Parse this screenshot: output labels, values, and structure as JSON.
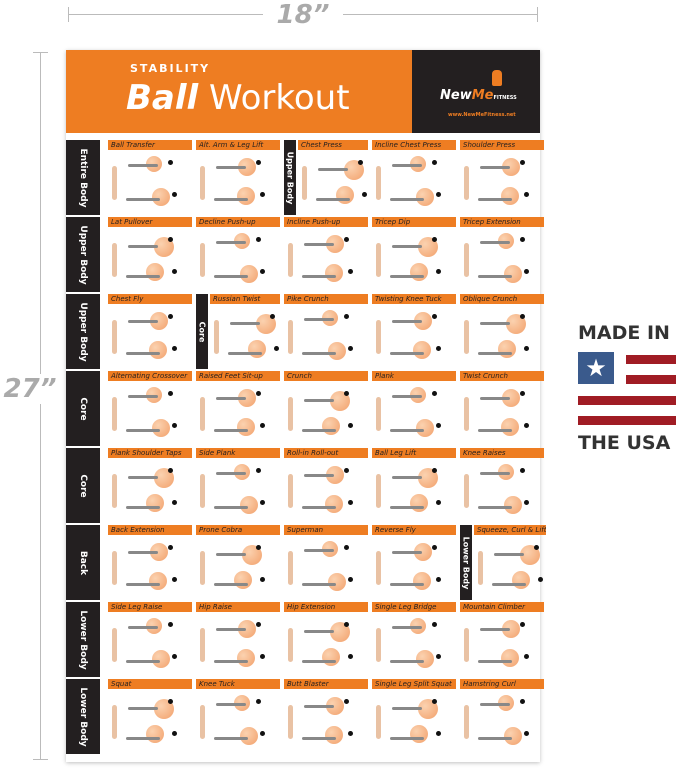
{
  "dimensions": {
    "width": "18”",
    "height": "27”"
  },
  "poster": {
    "title_small": "STABILITY",
    "title_bold": "Ball",
    "title_light": "Workout",
    "brand": {
      "name_a": "New",
      "name_b": "Me",
      "tagline": "FITNESS",
      "url": "www.NewMeFitness.net"
    },
    "accent_color": "#ee7d22",
    "dark_color": "#231f20",
    "rows": [
      {
        "label": "Entire Body",
        "exercises": [
          "Ball Transfer",
          "Alt. Arm & Leg Lift",
          "Chest Press",
          "Incline Chest Press",
          "Shoulder Press"
        ],
        "mid_label": "Upper Body",
        "mid_index": 2
      },
      {
        "label": "Upper Body",
        "exercises": [
          "Lat Pullover",
          "Decline Push-up",
          "Incline Push-up",
          "Tricep Dip",
          "Tricep Extension"
        ]
      },
      {
        "label": "Upper Body",
        "exercises": [
          "Chest Fly",
          "Russian Twist",
          "Pike Crunch",
          "Twisting Knee Tuck",
          "Oblique Crunch"
        ],
        "mid_label": "Core",
        "mid_index": 1
      },
      {
        "label": "Core",
        "exercises": [
          "Alternating Crossover",
          "Raised Feet Sit-up",
          "Crunch",
          "Plank",
          "Twist Crunch"
        ]
      },
      {
        "label": "Core",
        "exercises": [
          "Plank Shoulder Taps",
          "Side Plank",
          "Roll-in Roll-out",
          "Ball Leg Lift",
          "Knee Raises"
        ]
      },
      {
        "label": "Back",
        "exercises": [
          "Back Extension",
          "Prone Cobra",
          "Superman",
          "Reverse Fly",
          "Squeeze, Curl & Lift"
        ],
        "mid_label": "Lower Body",
        "mid_index": 4
      },
      {
        "label": "Lower Body",
        "exercises": [
          "Side Leg Raise",
          "Hip Raise",
          "Hip Extension",
          "Single Leg Bridge",
          "Mountain Climber"
        ]
      },
      {
        "label": "Lower Body",
        "exercises": [
          "Squat",
          "Knee Tuck",
          "Butt Blaster",
          "Single Leg Split Squat",
          "Hamstring Curl"
        ]
      }
    ]
  },
  "badge": {
    "line1": "MADE IN",
    "line2": "THE USA",
    "flag_blue": "#3a5a8c",
    "flag_red": "#a01c24"
  }
}
